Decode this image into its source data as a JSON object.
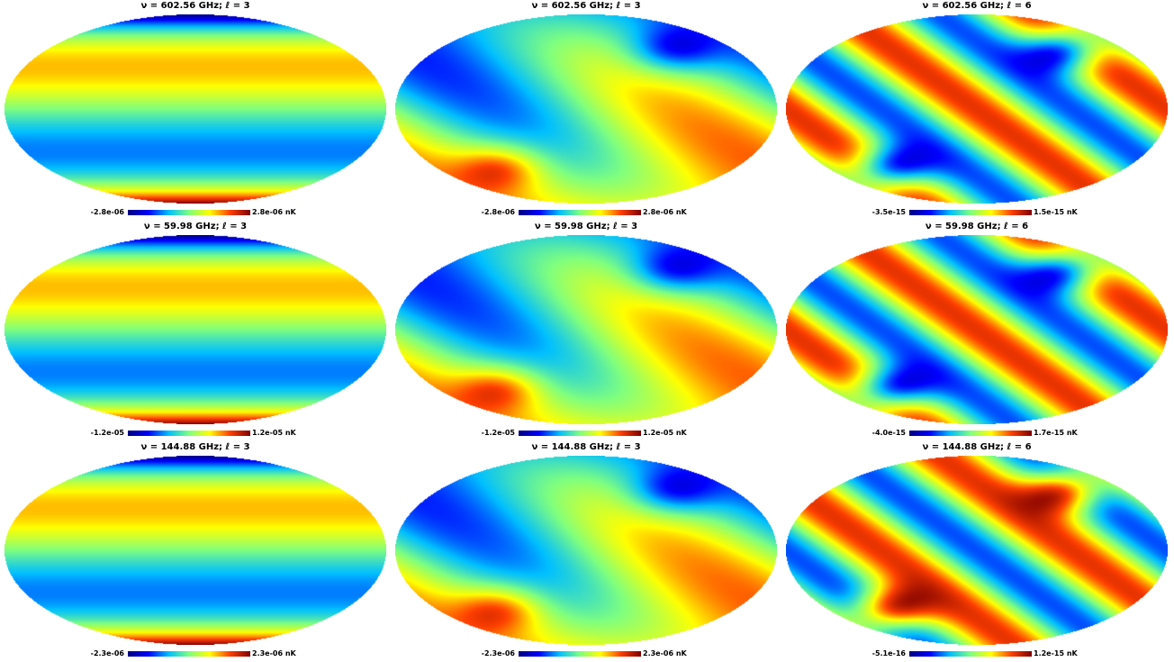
{
  "colors": {
    "jet": [
      "#00007f",
      "#0000ff",
      "#00bfff",
      "#7fff7f",
      "#ffff00",
      "#ff4000",
      "#7f0000"
    ]
  },
  "panels": [
    {
      "title": "ν = 602.56 GHz; ℓ = 3",
      "min": "-2.8e-06",
      "max": "2.8e-06 nK",
      "pattern": "bands"
    },
    {
      "title": "ν = 602.56 GHz; ℓ = 3",
      "min": "-2.8e-06",
      "max": "2.8e-06 nK",
      "pattern": "swirl"
    },
    {
      "title": "ν = 602.56 GHz; ℓ = 6",
      "min": "-3.5e-15",
      "max": "1.5e-15 nK",
      "pattern": "swirl-hi"
    },
    {
      "title": "ν = 59.98 GHz; ℓ = 3",
      "min": "-1.2e-05",
      "max": "1.2e-05 nK",
      "pattern": "bands"
    },
    {
      "title": "ν = 59.98 GHz; ℓ = 3",
      "min": "-1.2e-05",
      "max": "1.2e-05 nK",
      "pattern": "swirl"
    },
    {
      "title": "ν = 59.98 GHz; ℓ = 6",
      "min": "-4.0e-15",
      "max": "1.7e-15 nK",
      "pattern": "swirl-hi"
    },
    {
      "title": "ν = 144.88 GHz; ℓ = 3",
      "min": "-2.3e-06",
      "max": "2.3e-06 nK",
      "pattern": "bands"
    },
    {
      "title": "ν = 144.88 GHz; ℓ = 3",
      "min": "-2.3e-06",
      "max": "2.3e-06 nK",
      "pattern": "swirl"
    },
    {
      "title": "ν = 144.88 GHz; ℓ = 6",
      "min": "-5.1e-16",
      "max": "1.2e-15 nK",
      "pattern": "swirl-inv"
    }
  ]
}
